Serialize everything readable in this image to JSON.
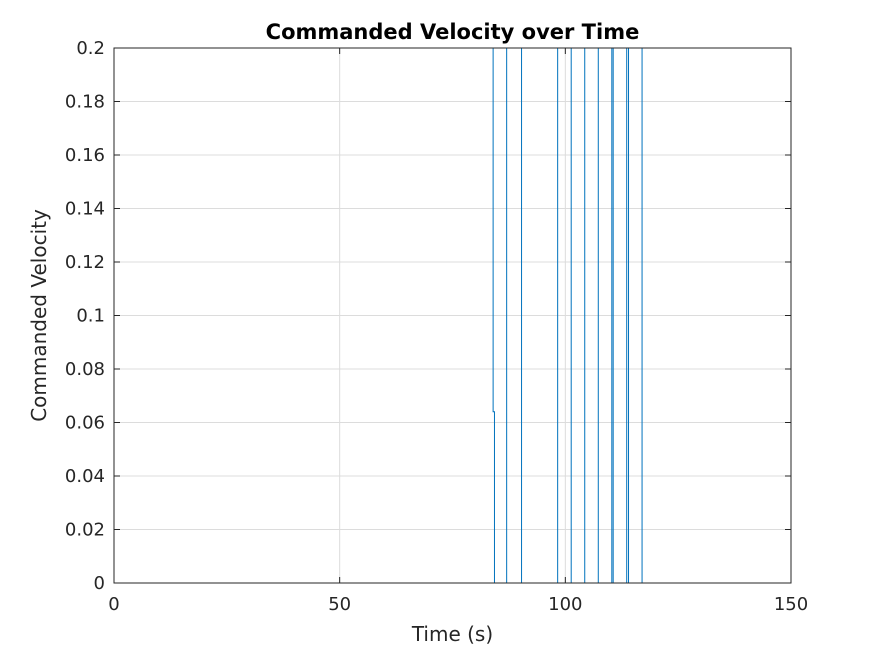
{
  "chart_data": {
    "type": "line",
    "title": "Commanded Velocity over Time",
    "xlabel": "Time (s)",
    "ylabel": "Commanded Velocity",
    "xlim": [
      0,
      150
    ],
    "ylim": [
      0,
      0.2
    ],
    "xticks": [
      "0",
      "50",
      "100",
      "150"
    ],
    "yticks": [
      "0",
      "0.02",
      "0.04",
      "0.06",
      "0.08",
      "0.1",
      "0.12",
      "0.14",
      "0.16",
      "0.18",
      "0.2"
    ],
    "grid": true,
    "series": [
      {
        "color": "#0072BD",
        "x": [
          0,
          84,
          84,
          84.3,
          84.3,
          87,
          87,
          90.3,
          90.3,
          98.3,
          98.3,
          101.3,
          101.3,
          104.3,
          104.3,
          107.3,
          107.3,
          110.3,
          110.3,
          110.6,
          110.6,
          113.6,
          113.6,
          114,
          114,
          117,
          117,
          142
        ],
        "y": [
          0.2,
          0.2,
          0.064,
          0.064,
          0,
          0,
          0.2,
          0.2,
          0,
          0,
          0.2,
          0.2,
          0,
          0,
          0.2,
          0.2,
          0,
          0,
          0.2,
          0.2,
          0,
          0,
          0.2,
          0.2,
          0,
          0,
          0.2,
          0.2
        ]
      }
    ]
  }
}
